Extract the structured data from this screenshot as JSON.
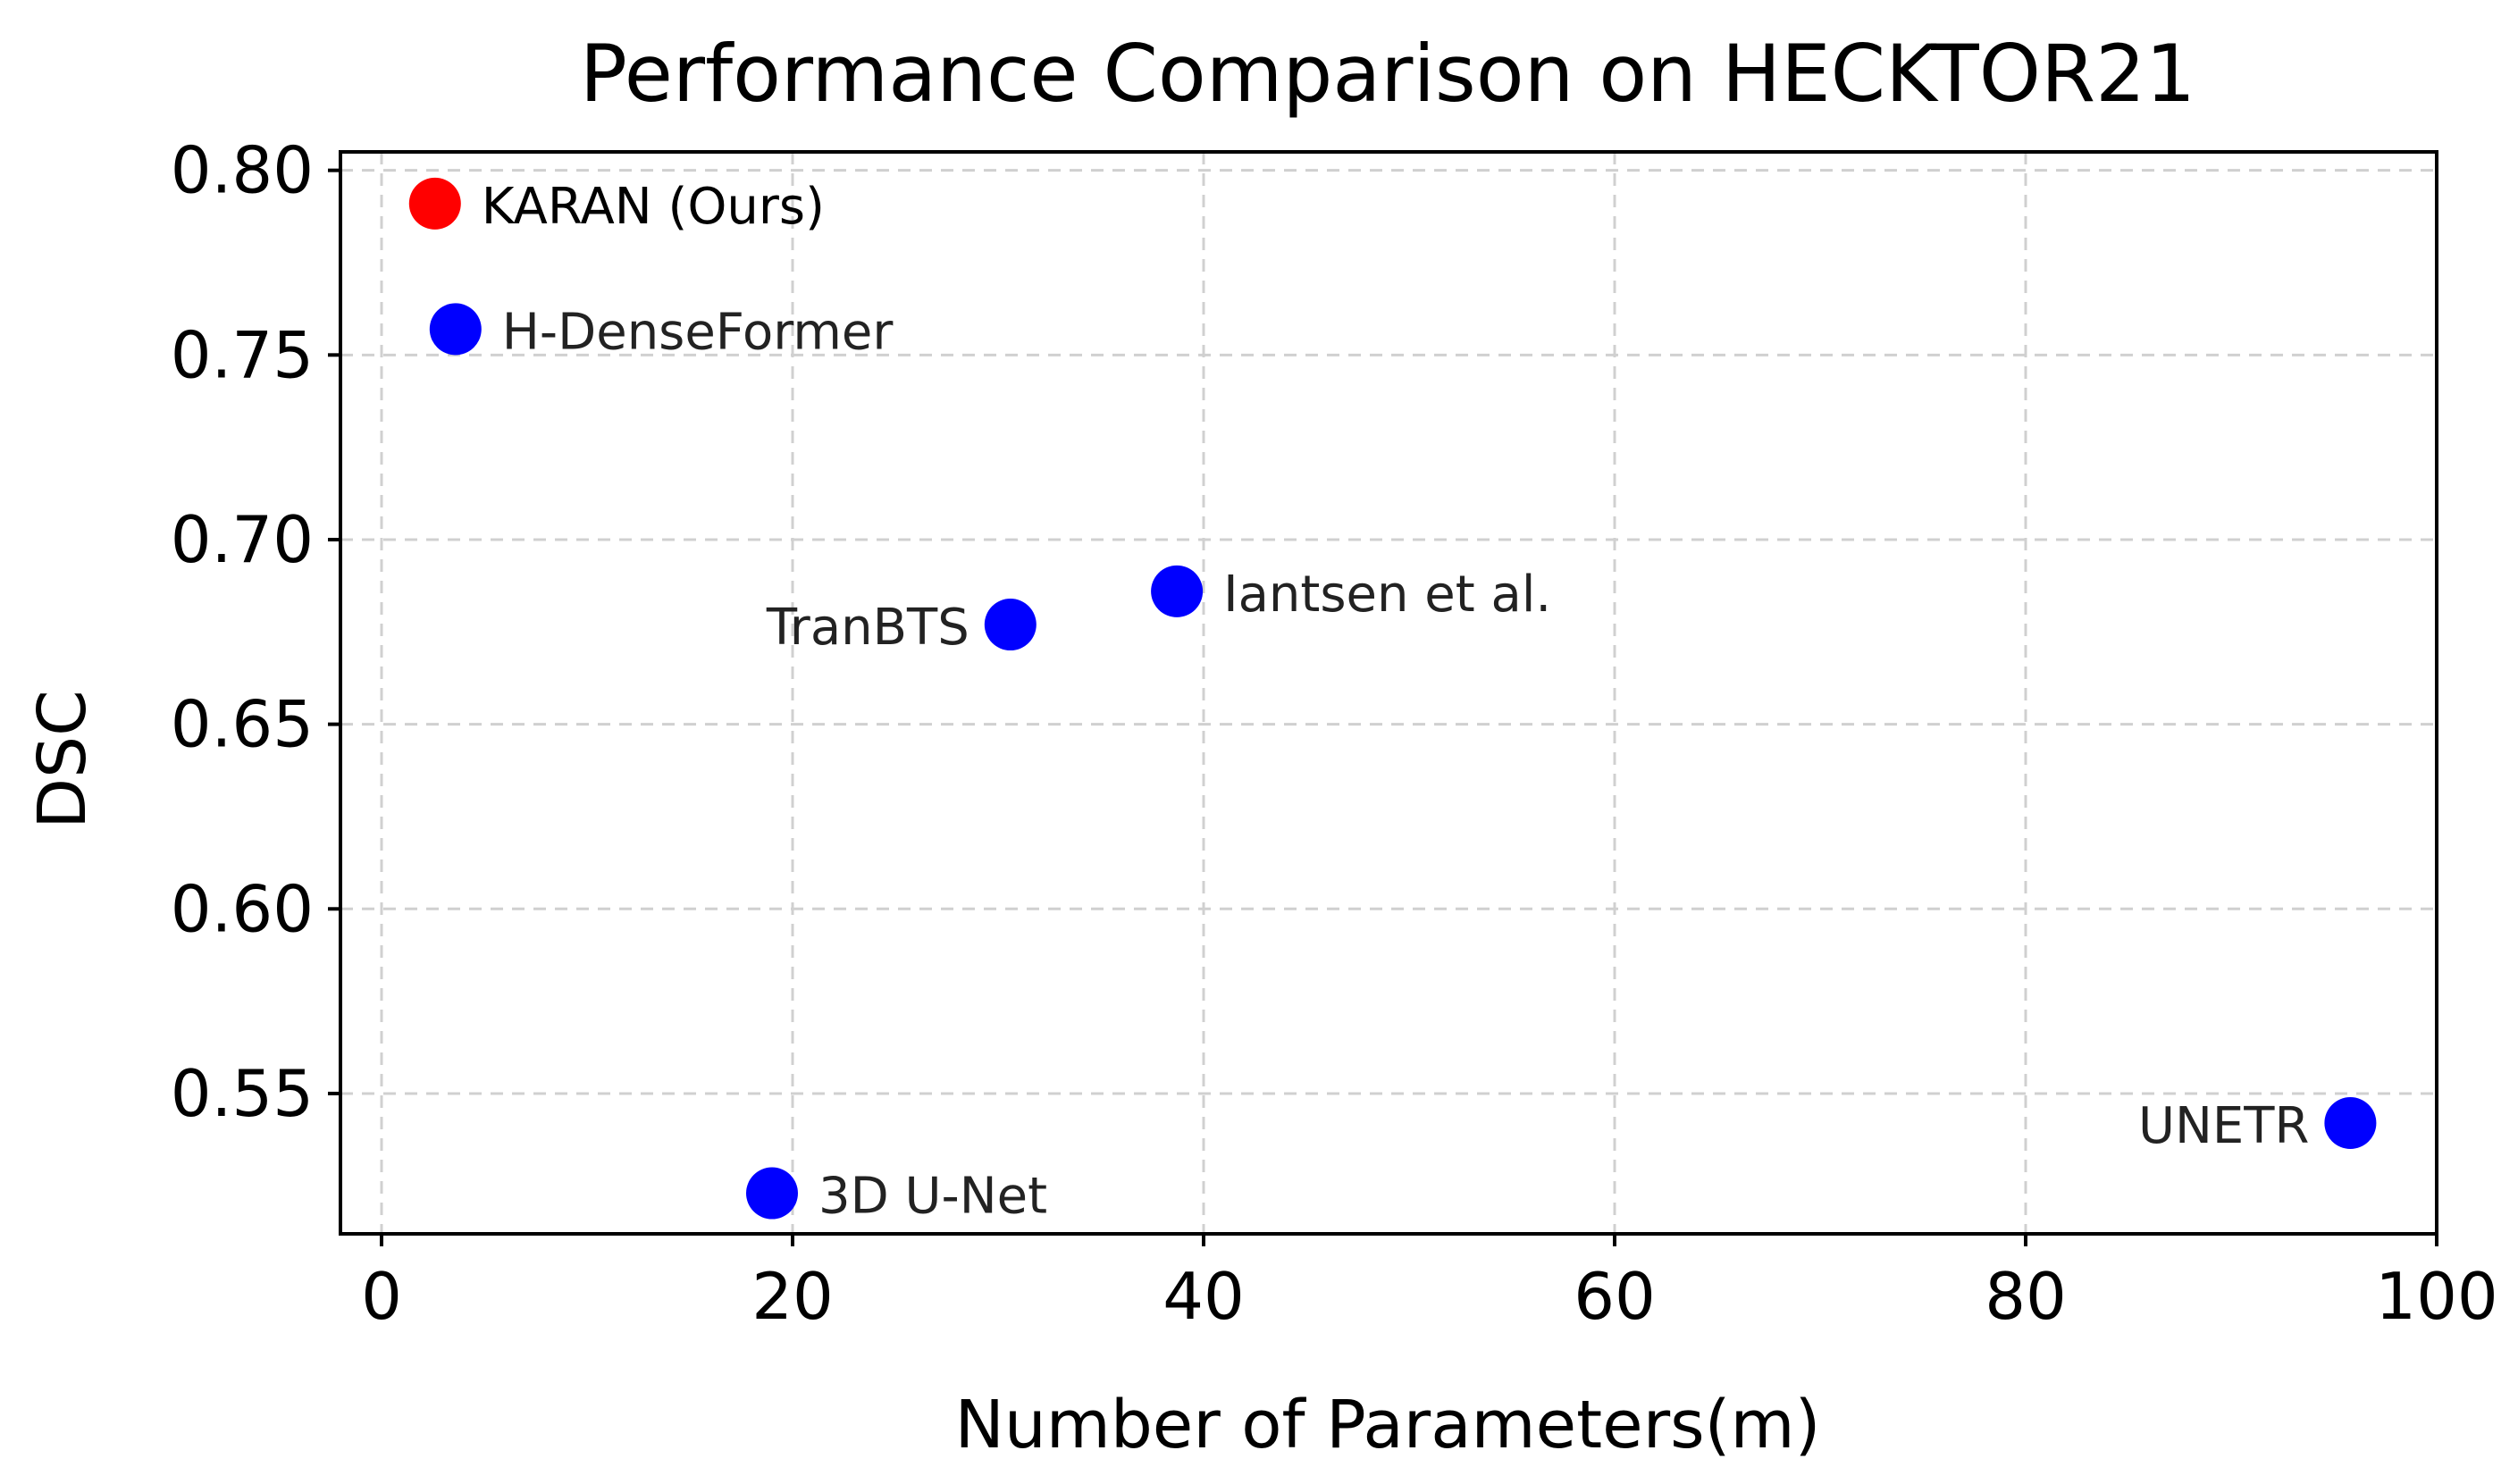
{
  "chart_data": {
    "type": "scatter",
    "title": "Performance Comparison on HECKTOR21",
    "xlabel": "Number of Parameters(m)",
    "ylabel": "DSC",
    "xlim": [
      -2,
      100
    ],
    "ylim": [
      0.512,
      0.805
    ],
    "xticks": [
      0,
      20,
      40,
      60,
      80,
      100
    ],
    "xtick_labels": [
      "0",
      "20",
      "40",
      "60",
      "80",
      "100"
    ],
    "yticks": [
      0.55,
      0.6,
      0.65,
      0.7,
      0.75,
      0.8
    ],
    "ytick_labels": [
      "0.55",
      "0.60",
      "0.65",
      "0.70",
      "0.75",
      "0.80"
    ],
    "grid": true,
    "points": [
      {
        "label": "KARAN (Ours)",
        "x": 2.6,
        "y": 0.791,
        "color": "#ff0000",
        "label_side": "right",
        "emphasis": true
      },
      {
        "label": "H-DenseFormer",
        "x": 3.6,
        "y": 0.757,
        "color": "#0000ff",
        "label_side": "right",
        "emphasis": false
      },
      {
        "label": "TranBTS",
        "x": 30.6,
        "y": 0.677,
        "color": "#0000ff",
        "label_side": "left",
        "emphasis": false
      },
      {
        "label": "Iantsen et al.",
        "x": 38.7,
        "y": 0.686,
        "color": "#0000ff",
        "label_side": "right",
        "emphasis": false
      },
      {
        "label": "3D U-Net",
        "x": 19.0,
        "y": 0.523,
        "color": "#0000ff",
        "label_side": "right",
        "emphasis": false
      },
      {
        "label": "UNETR",
        "x": 95.8,
        "y": 0.542,
        "color": "#0000ff",
        "label_side": "left",
        "emphasis": false
      }
    ]
  }
}
